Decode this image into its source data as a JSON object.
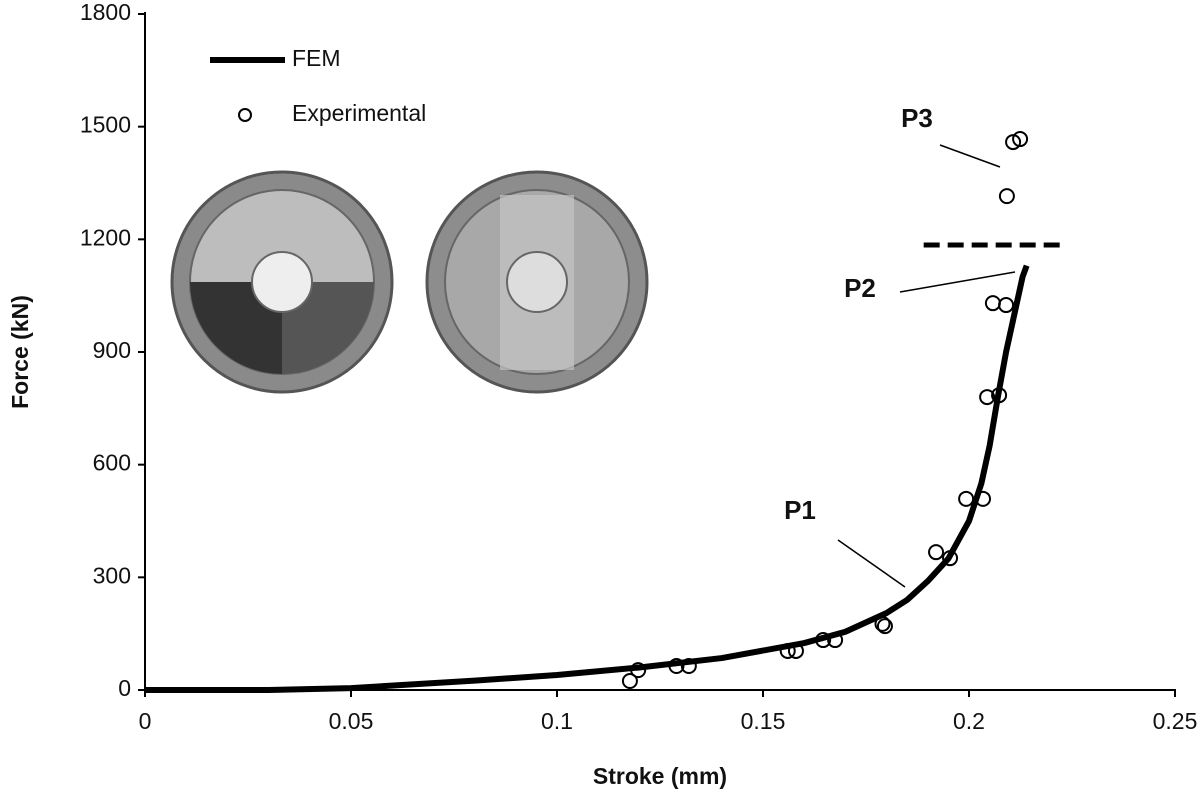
{
  "chart_data": {
    "type": "line",
    "x_label": "Stroke (mm)",
    "y_label": "Force (kN)",
    "xlim": [
      0,
      0.25
    ],
    "ylim": [
      0,
      1800
    ],
    "xticks": [
      0,
      0.05,
      0.1,
      0.15,
      0.2,
      0.25
    ],
    "yticks": [
      0,
      300,
      600,
      900,
      1200,
      1500,
      1800
    ],
    "legend": "upper left",
    "series": [
      {
        "name": "FEM",
        "kind": "line",
        "color": "#000000",
        "x": [
          0,
          0.03,
          0.05,
          0.08,
          0.1,
          0.12,
          0.14,
          0.16,
          0.17,
          0.18,
          0.185,
          0.19,
          0.195,
          0.2,
          0.203,
          0.205,
          0.207,
          0.209,
          0.211,
          0.213,
          0.214
        ],
        "values": [
          0,
          0,
          5,
          25,
          40,
          60,
          85,
          125,
          155,
          205,
          240,
          290,
          350,
          450,
          550,
          650,
          780,
          900,
          1000,
          1100,
          1130
        ]
      },
      {
        "name": "Experimental",
        "kind": "scatter",
        "color": "#000000",
        "x": [
          0.1177,
          0.1197,
          0.129,
          0.132,
          0.156,
          0.158,
          0.1646,
          0.1675,
          0.179,
          0.1796,
          0.192,
          0.1954,
          0.1993,
          0.2034,
          0.2044,
          0.2073,
          0.2058,
          0.209,
          0.2092,
          0.2107,
          0.2124
        ],
        "values": [
          24,
          53,
          64,
          64,
          104,
          104,
          133,
          133,
          176,
          170,
          367,
          351,
          509,
          509,
          780,
          785,
          1030,
          1025,
          1315,
          1459,
          1467
        ]
      }
    ],
    "reference_line": {
      "y": 1185,
      "x": [
        0.189,
        0.2235
      ],
      "color": "#000000"
    },
    "annotations": [
      "P1",
      "P2",
      "P3"
    ]
  }
}
